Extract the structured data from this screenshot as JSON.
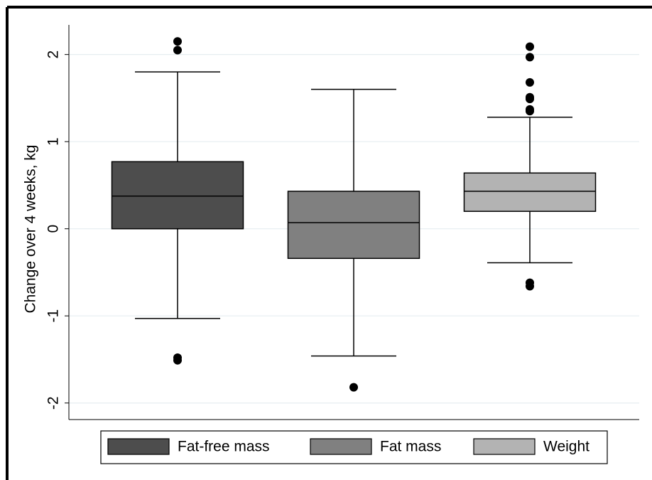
{
  "chart_data": {
    "type": "box",
    "ylabel": "Change over 4 weeks, kg",
    "ylim": [
      -2.19,
      2.34
    ],
    "yticks": [
      -2,
      -1,
      0,
      1,
      2
    ],
    "grid": true,
    "series": [
      {
        "name": "Fat-free mass",
        "color": "#4d4d4d",
        "q1": 0.0,
        "median": 0.375,
        "q3": 0.77,
        "whisker_low": -1.03,
        "whisker_high": 1.8,
        "outliers": [
          2.15,
          2.05,
          -1.48,
          -1.51
        ]
      },
      {
        "name": "Fat mass",
        "color": "#808080",
        "q1": -0.34,
        "median": 0.07,
        "q3": 0.43,
        "whisker_low": -1.46,
        "whisker_high": 1.6,
        "outliers": [
          -1.82
        ]
      },
      {
        "name": "Weight",
        "color": "#b3b3b3",
        "q1": 0.2,
        "median": 0.43,
        "q3": 0.64,
        "whisker_low": -0.39,
        "whisker_high": 1.28,
        "outliers": [
          2.09,
          1.97,
          1.68,
          1.51,
          1.49,
          1.37,
          1.35,
          -0.62,
          -0.66
        ]
      }
    ]
  }
}
